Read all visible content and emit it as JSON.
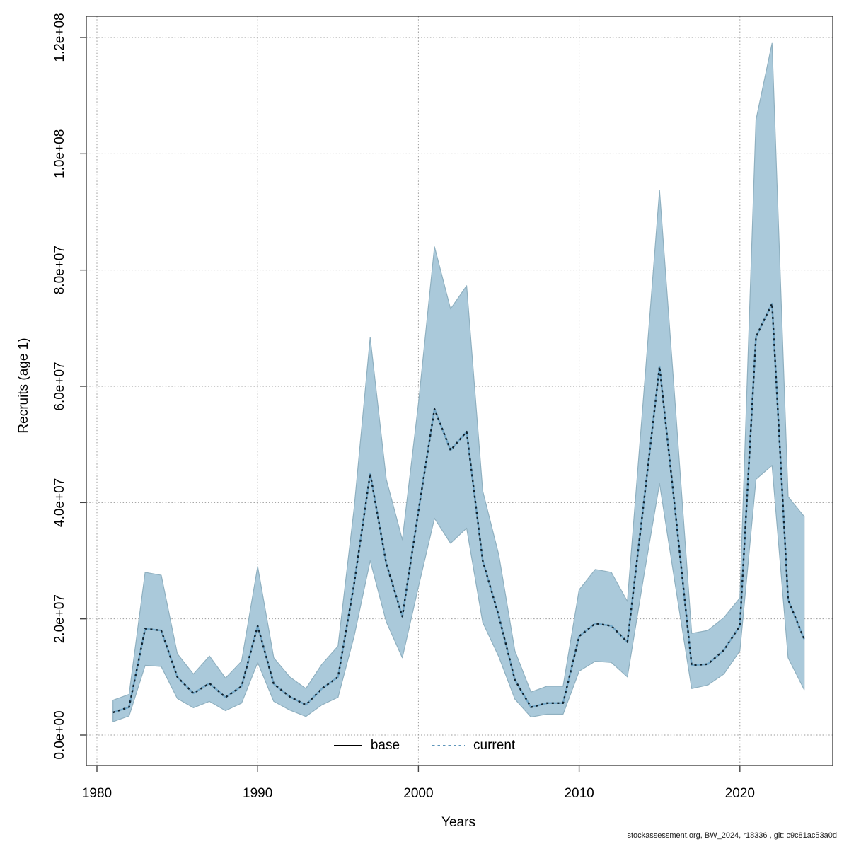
{
  "footer": {
    "text": "stockassessment.org, BW_2024, r18336 , git: c9c81ac53a0d"
  },
  "chart_data": {
    "type": "line",
    "title": "",
    "xlabel": "Years",
    "ylabel": "Recruits (age 1)",
    "unit": "recruits, values stored as millions (×1e6)",
    "grid": true,
    "x_ticks": [
      1980,
      1990,
      2000,
      2010,
      2020
    ],
    "y_ticks": [
      {
        "value_e6": 0,
        "label": "0.0e+00"
      },
      {
        "value_e6": 20,
        "label": "2.0e+07"
      },
      {
        "value_e6": 40,
        "label": "4.0e+07"
      },
      {
        "value_e6": 60,
        "label": "6.0e+07"
      },
      {
        "value_e6": 80,
        "label": "8.0e+07"
      },
      {
        "value_e6": 100,
        "label": "1.0e+08"
      },
      {
        "value_e6": 120,
        "label": "1.2e+08"
      }
    ],
    "xlim": [
      1979.3,
      2025.7
    ],
    "ylim_e6": [
      0,
      120
    ],
    "years": [
      1981,
      1982,
      1983,
      1984,
      1985,
      1986,
      1987,
      1988,
      1989,
      1990,
      1991,
      1992,
      1993,
      1994,
      1995,
      1996,
      1997,
      1998,
      1999,
      2000,
      2001,
      2002,
      2003,
      2004,
      2005,
      2006,
      2007,
      2008,
      2009,
      2010,
      2011,
      2012,
      2013,
      2014,
      2015,
      2016,
      2017,
      2018,
      2019,
      2020,
      2021,
      2022,
      2023,
      2024
    ],
    "series": [
      {
        "name": "base",
        "line_style": "solid",
        "note": "coincides with current line (visible as solid core under the dots)",
        "values_e6": [
          3.9,
          4.8,
          18.3,
          18.0,
          10.0,
          7.2,
          8.9,
          6.5,
          8.4,
          18.8,
          8.8,
          6.6,
          5.2,
          8.0,
          10.0,
          26.0,
          45.0,
          29.5,
          20.4,
          38.5,
          56.1,
          49.0,
          52.2,
          30.0,
          20.5,
          9.5,
          4.8,
          5.5,
          5.5,
          17.0,
          19.2,
          18.8,
          16.0,
          39.5,
          63.4,
          38.0,
          12.0,
          12.2,
          14.6,
          18.8,
          68.5,
          74.2,
          23.3,
          16.5
        ]
      },
      {
        "name": "current",
        "line_style": "dotted",
        "values_e6": [
          3.9,
          4.8,
          18.3,
          18.0,
          10.0,
          7.2,
          8.9,
          6.5,
          8.4,
          18.8,
          8.8,
          6.6,
          5.2,
          8.0,
          10.0,
          26.0,
          45.0,
          29.5,
          20.4,
          38.5,
          56.1,
          49.0,
          52.2,
          30.0,
          20.5,
          9.5,
          4.8,
          5.5,
          5.5,
          17.0,
          19.2,
          18.8,
          16.0,
          39.5,
          63.4,
          38.0,
          12.0,
          12.2,
          14.6,
          18.8,
          68.5,
          74.2,
          23.3,
          16.5
        ]
      }
    ],
    "band": {
      "belongs_to": "current",
      "low_e6": [
        2.3,
        3.3,
        12.0,
        11.8,
        6.3,
        4.7,
        5.8,
        4.2,
        5.5,
        12.5,
        5.8,
        4.3,
        3.2,
        5.2,
        6.5,
        17.0,
        30.0,
        19.5,
        13.3,
        25.5,
        37.3,
        33.0,
        35.6,
        19.4,
        13.5,
        6.2,
        3.1,
        3.6,
        3.6,
        11.0,
        12.7,
        12.5,
        10.0,
        27.0,
        43.3,
        25.5,
        8.0,
        8.6,
        10.5,
        14.5,
        44.0,
        46.4,
        13.3,
        7.8
      ],
      "high_e6": [
        6.0,
        7.0,
        28.0,
        27.5,
        14.0,
        10.5,
        13.6,
        9.8,
        12.7,
        29.0,
        13.3,
        10.0,
        8.0,
        12.2,
        15.3,
        39.0,
        68.4,
        44.0,
        33.6,
        57.0,
        84.0,
        73.3,
        77.3,
        42.0,
        31.0,
        14.5,
        7.4,
        8.4,
        8.4,
        25.0,
        28.5,
        28.0,
        23.0,
        58.0,
        93.7,
        56.0,
        17.5,
        18.0,
        20.2,
        23.6,
        105.8,
        119.0,
        41.0,
        37.6
      ]
    },
    "legend": {
      "position": "bottom-center-inside",
      "entries": [
        "base",
        "current"
      ]
    },
    "colors": {
      "band_fill": "#aac9da",
      "band_edge": "#8fb0c0",
      "base_legend_line": "#000000",
      "current_legend_line": "#5d95ba",
      "plot_base_core_line": "#74a9c9",
      "plot_current_dashes": "#10222e",
      "grid": "#999999",
      "axis": "#444444"
    }
  }
}
